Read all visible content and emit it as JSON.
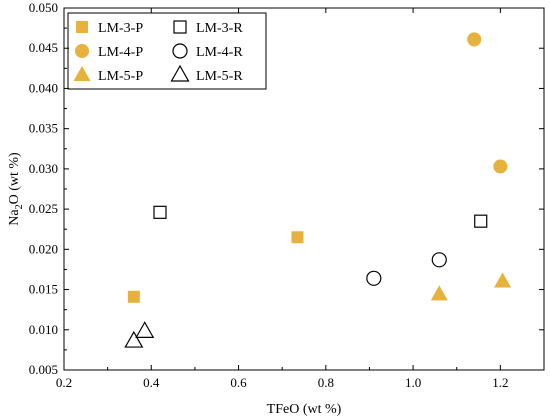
{
  "chart_data": {
    "type": "scatter",
    "title": "",
    "xlabel": "TFeO (wt %)",
    "ylabel": {
      "prefix": "Na",
      "subscript": "2",
      "suffix": "O (wt %)"
    },
    "xlim": [
      0.2,
      1.3
    ],
    "ylim": [
      0.005,
      0.05
    ],
    "x_ticks": [
      "0.2",
      "0.4",
      "0.6",
      "0.8",
      "1.0",
      "1.2"
    ],
    "y_ticks": [
      "0.005",
      "0.010",
      "0.015",
      "0.020",
      "0.025",
      "0.030",
      "0.035",
      "0.040",
      "0.045",
      "0.050"
    ],
    "x_tick_values": [
      0.2,
      0.4,
      0.6,
      0.8,
      1.0,
      1.2
    ],
    "y_tick_values": [
      0.005,
      0.01,
      0.015,
      0.02,
      0.025,
      0.03,
      0.035,
      0.04,
      0.045,
      0.05
    ],
    "grid": false,
    "legend_position": "top-left",
    "colors": {
      "filled": "#E6B13C",
      "axis": "#000000"
    },
    "series": [
      {
        "name": "LM-3-P",
        "marker": "square",
        "fill": true,
        "points": [
          {
            "x": 0.36,
            "y": 0.0141
          },
          {
            "x": 0.735,
            "y": 0.0215
          }
        ]
      },
      {
        "name": "LM-3-R",
        "marker": "square",
        "fill": false,
        "points": [
          {
            "x": 0.42,
            "y": 0.0246
          },
          {
            "x": 1.155,
            "y": 0.0235
          }
        ]
      },
      {
        "name": "LM-4-P",
        "marker": "circle",
        "fill": true,
        "points": [
          {
            "x": 1.14,
            "y": 0.0461
          },
          {
            "x": 1.2,
            "y": 0.0303
          }
        ]
      },
      {
        "name": "LM-4-R",
        "marker": "circle",
        "fill": false,
        "points": [
          {
            "x": 0.91,
            "y": 0.0164
          },
          {
            "x": 1.06,
            "y": 0.0187
          }
        ]
      },
      {
        "name": "LM-5-P",
        "marker": "triangle",
        "fill": true,
        "points": [
          {
            "x": 1.06,
            "y": 0.0144
          },
          {
            "x": 1.205,
            "y": 0.016
          }
        ]
      },
      {
        "name": "LM-5-R",
        "marker": "triangle",
        "fill": false,
        "points": [
          {
            "x": 0.36,
            "y": 0.0086
          },
          {
            "x": 0.385,
            "y": 0.0098
          }
        ]
      }
    ],
    "legend": {
      "order": [
        [
          "LM-3-P",
          "LM-3-R"
        ],
        [
          "LM-4-P",
          "LM-4-R"
        ],
        [
          "LM-5-P",
          "LM-5-R"
        ]
      ]
    }
  }
}
